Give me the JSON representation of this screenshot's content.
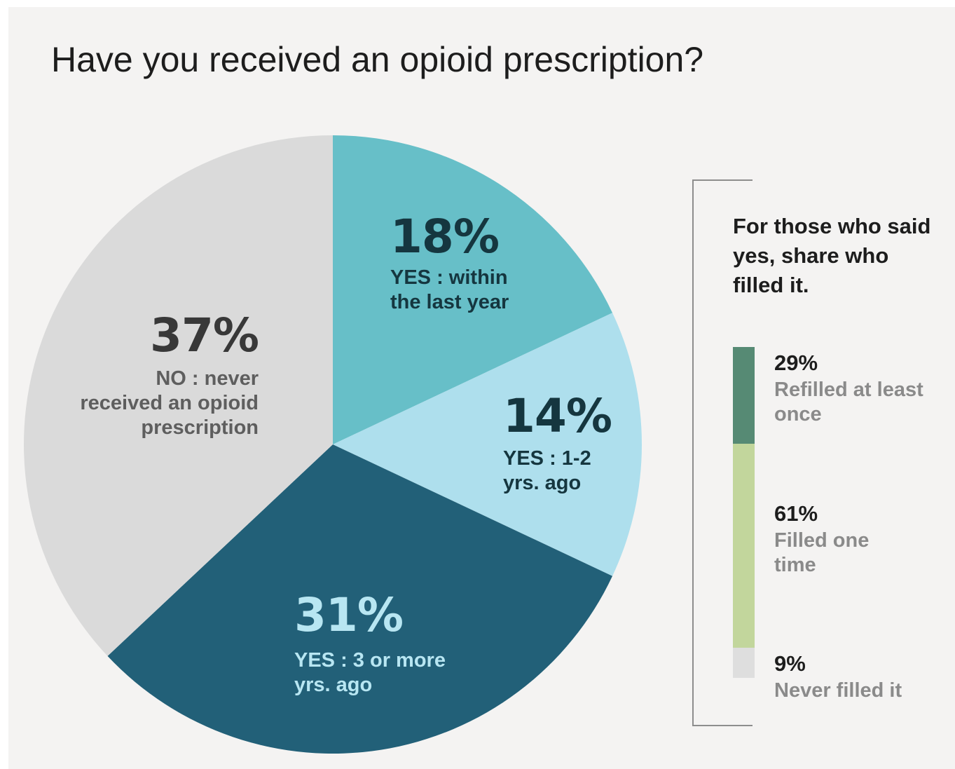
{
  "chart_data": [
    {
      "type": "pie",
      "title": "Have you received an opioid prescription?",
      "slices": [
        {
          "percent_label": "18%",
          "value": 18,
          "label_lines": [
            "YES : within",
            "the last year"
          ],
          "color": "#67bfc8",
          "pct_color": "#15363f",
          "label_color": "#15363f"
        },
        {
          "percent_label": "14%",
          "value": 14,
          "label_lines": [
            "YES : 1-2",
            "yrs. ago"
          ],
          "color": "#aedfed",
          "pct_color": "#15363f",
          "label_color": "#15363f"
        },
        {
          "percent_label": "31%",
          "value": 31,
          "label_lines": [
            "YES : 3 or more",
            "yrs. ago"
          ],
          "color": "#226078",
          "pct_color": "#b8e6f2",
          "label_color": "#b8e6f2"
        },
        {
          "percent_label": "37%",
          "value": 37,
          "label_lines": [
            "NO : never",
            "received an opioid",
            "prescription"
          ],
          "color": "#dadada",
          "pct_color": "#383838",
          "label_color": "#5e5e5e"
        }
      ]
    },
    {
      "type": "bar",
      "subtype": "stacked-100",
      "title": "For those who said yes, share who filled it.",
      "segments": [
        {
          "percent_label": "29%",
          "value": 29,
          "label": "Refilled at least once",
          "color": "#568a74"
        },
        {
          "percent_label": "61%",
          "value": 61,
          "label": "Filled one time",
          "color": "#c2d69c"
        },
        {
          "percent_label": "9%",
          "value": 9,
          "label": "Never filled it",
          "color": "#dedede"
        }
      ]
    }
  ]
}
